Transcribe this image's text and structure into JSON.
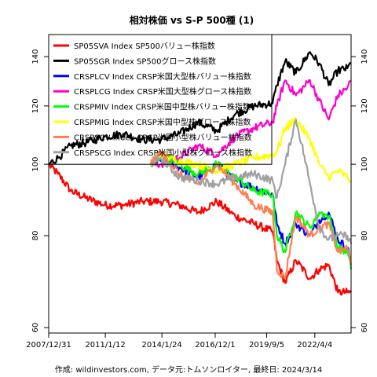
{
  "chart_data": {
    "type": "line",
    "title": "相対株価 vs S-P 500種 (1)",
    "footer": "作成: wildinvestors.com, データ元:トムソンロイター, 最終日: 2024/3/14",
    "xlabel": "",
    "ylabel": "",
    "y_scale": "log",
    "ylim": [
      59,
      150
    ],
    "y_ticks": [
      60,
      80,
      100,
      120,
      140
    ],
    "x_tick_labels": [
      "2007/12/31",
      "2011/1/12",
      "2014/1/24",
      "2016/12/1",
      "2019/9/5",
      "2022/4/4"
    ],
    "x_range": [
      "2007-12-31",
      "2024-03-14"
    ],
    "reference_line": 100,
    "legend_position": "top-left",
    "grid": false,
    "series": [
      {
        "name": "SP05SVA Index SP500バリュー株指数",
        "color": "#ff0000",
        "points": [
          [
            "2007-12-31",
            100
          ],
          [
            "2008-06-30",
            97
          ],
          [
            "2009-03-09",
            92
          ],
          [
            "2009-12-31",
            90
          ],
          [
            "2010-12-31",
            88
          ],
          [
            "2011-12-31",
            88
          ],
          [
            "2012-12-31",
            89
          ],
          [
            "2013-12-31",
            89
          ],
          [
            "2014-12-31",
            88
          ],
          [
            "2015-12-31",
            86
          ],
          [
            "2016-12-31",
            89
          ],
          [
            "2017-12-31",
            85
          ],
          [
            "2018-12-31",
            83
          ],
          [
            "2019-12-31",
            81
          ],
          [
            "2020-03-23",
            74
          ],
          [
            "2020-09-01",
            69
          ],
          [
            "2021-03-31",
            74
          ],
          [
            "2021-12-31",
            70
          ],
          [
            "2022-06-30",
            72
          ],
          [
            "2022-12-31",
            73
          ],
          [
            "2023-06-30",
            67
          ],
          [
            "2023-12-31",
            67
          ],
          [
            "2024-03-14",
            67
          ]
        ]
      },
      {
        "name": "SP05SGR Index SP500グロース株指数",
        "color": "#000000",
        "points": [
          [
            "2007-12-31",
            100
          ],
          [
            "2008-06-30",
            102
          ],
          [
            "2009-03-09",
            106
          ],
          [
            "2009-12-31",
            107
          ],
          [
            "2010-12-31",
            109
          ],
          [
            "2011-12-31",
            110
          ],
          [
            "2012-12-31",
            108
          ],
          [
            "2013-12-31",
            108
          ],
          [
            "2014-12-31",
            110
          ],
          [
            "2015-12-31",
            114
          ],
          [
            "2016-12-31",
            111
          ],
          [
            "2017-12-31",
            117
          ],
          [
            "2018-12-31",
            120
          ],
          [
            "2019-12-31",
            121
          ],
          [
            "2020-03-23",
            128
          ],
          [
            "2020-09-01",
            138
          ],
          [
            "2021-03-31",
            133
          ],
          [
            "2021-12-31",
            142
          ],
          [
            "2022-06-30",
            137
          ],
          [
            "2022-12-31",
            128
          ],
          [
            "2023-06-30",
            134
          ],
          [
            "2023-12-31",
            135
          ],
          [
            "2024-03-14",
            137
          ]
        ]
      },
      {
        "name": "CRSPLCV Index CRSP米国大型株バリュー株指数",
        "color": "#0000ff",
        "points": [
          [
            "2013-06-17",
            100
          ],
          [
            "2013-12-31",
            101
          ],
          [
            "2014-12-31",
            99
          ],
          [
            "2015-12-31",
            96
          ],
          [
            "2016-12-31",
            100
          ],
          [
            "2017-12-31",
            95
          ],
          [
            "2018-12-31",
            93
          ],
          [
            "2019-12-31",
            91
          ],
          [
            "2020-03-23",
            83
          ],
          [
            "2020-09-01",
            78
          ],
          [
            "2021-03-31",
            83
          ],
          [
            "2021-12-31",
            80
          ],
          [
            "2022-06-30",
            84
          ],
          [
            "2022-12-31",
            86
          ],
          [
            "2023-06-30",
            79
          ],
          [
            "2023-12-31",
            77
          ],
          [
            "2024-03-14",
            74
          ]
        ]
      },
      {
        "name": "CRSPLCG Index CRSP米国大型株グロース株指数",
        "color": "#ff00cc",
        "points": [
          [
            "2013-06-17",
            100
          ],
          [
            "2013-12-31",
            100
          ],
          [
            "2014-12-31",
            102
          ],
          [
            "2015-12-31",
            106
          ],
          [
            "2016-12-31",
            103
          ],
          [
            "2017-12-31",
            109
          ],
          [
            "2018-12-31",
            112
          ],
          [
            "2019-12-31",
            114
          ],
          [
            "2020-03-23",
            120
          ],
          [
            "2020-09-01",
            130
          ],
          [
            "2021-03-31",
            124
          ],
          [
            "2021-12-31",
            130
          ],
          [
            "2022-06-30",
            122
          ],
          [
            "2022-12-31",
            115
          ],
          [
            "2023-06-30",
            124
          ],
          [
            "2023-12-31",
            127
          ],
          [
            "2024-03-14",
            130
          ]
        ]
      },
      {
        "name": "CRSPMIV Index CRSP米国中型株バリュー株指数",
        "color": "#00ff00",
        "points": [
          [
            "2013-06-17",
            100
          ],
          [
            "2013-12-31",
            103
          ],
          [
            "2014-12-31",
            100
          ],
          [
            "2015-12-31",
            97
          ],
          [
            "2016-12-31",
            100
          ],
          [
            "2017-12-31",
            96
          ],
          [
            "2018-12-31",
            92
          ],
          [
            "2019-12-31",
            91
          ],
          [
            "2020-03-23",
            80
          ],
          [
            "2020-09-01",
            76
          ],
          [
            "2021-03-31",
            86
          ],
          [
            "2021-12-31",
            82
          ],
          [
            "2022-06-30",
            86
          ],
          [
            "2022-12-31",
            85
          ],
          [
            "2023-06-30",
            77
          ],
          [
            "2023-12-31",
            76
          ],
          [
            "2024-03-14",
            72
          ]
        ]
      },
      {
        "name": "CRSPMIG Index CRSP米国中型株グロース株指数",
        "color": "#ffff00",
        "points": [
          [
            "2013-06-17",
            100
          ],
          [
            "2013-12-31",
            103
          ],
          [
            "2014-12-31",
            101
          ],
          [
            "2015-12-31",
            100
          ],
          [
            "2016-12-31",
            98
          ],
          [
            "2017-12-31",
            100
          ],
          [
            "2018-12-31",
            102
          ],
          [
            "2019-12-31",
            103
          ],
          [
            "2020-03-23",
            104
          ],
          [
            "2020-09-01",
            112
          ],
          [
            "2021-03-31",
            115
          ],
          [
            "2021-12-31",
            108
          ],
          [
            "2022-06-30",
            100
          ],
          [
            "2022-12-31",
            96
          ],
          [
            "2023-06-30",
            98
          ],
          [
            "2023-12-31",
            96
          ],
          [
            "2024-03-14",
            95
          ]
        ]
      },
      {
        "name": "CRSPSCV Index CRSP米国小型株バリュー株指数",
        "color": "#ff7f50",
        "points": [
          [
            "2013-06-17",
            100
          ],
          [
            "2013-12-31",
            104
          ],
          [
            "2014-12-31",
            97
          ],
          [
            "2015-12-31",
            94
          ],
          [
            "2016-12-31",
            100
          ],
          [
            "2017-12-31",
            94
          ],
          [
            "2018-12-31",
            88
          ],
          [
            "2019-12-31",
            86
          ],
          [
            "2020-03-23",
            72
          ],
          [
            "2020-09-01",
            70
          ],
          [
            "2021-03-31",
            85
          ],
          [
            "2021-12-31",
            80
          ],
          [
            "2022-06-30",
            82
          ],
          [
            "2022-12-31",
            83
          ],
          [
            "2023-06-30",
            76
          ],
          [
            "2023-12-31",
            77
          ],
          [
            "2024-03-14",
            73
          ]
        ]
      },
      {
        "name": "CRSPSCG Index CRSP米国小型株グロース株指数",
        "color": "#a0a0a0",
        "points": [
          [
            "2013-06-17",
            100
          ],
          [
            "2013-12-31",
            102
          ],
          [
            "2014-12-31",
            96
          ],
          [
            "2015-12-31",
            95
          ],
          [
            "2016-12-31",
            94
          ],
          [
            "2017-12-31",
            96
          ],
          [
            "2018-12-31",
            97
          ],
          [
            "2019-12-31",
            95
          ],
          [
            "2020-03-23",
            90
          ],
          [
            "2020-09-01",
            100
          ],
          [
            "2021-03-31",
            115
          ],
          [
            "2021-12-31",
            94
          ],
          [
            "2022-06-30",
            82
          ],
          [
            "2022-12-31",
            79
          ],
          [
            "2023-06-30",
            80
          ],
          [
            "2023-12-31",
            80
          ],
          [
            "2024-03-14",
            78
          ]
        ]
      }
    ]
  }
}
